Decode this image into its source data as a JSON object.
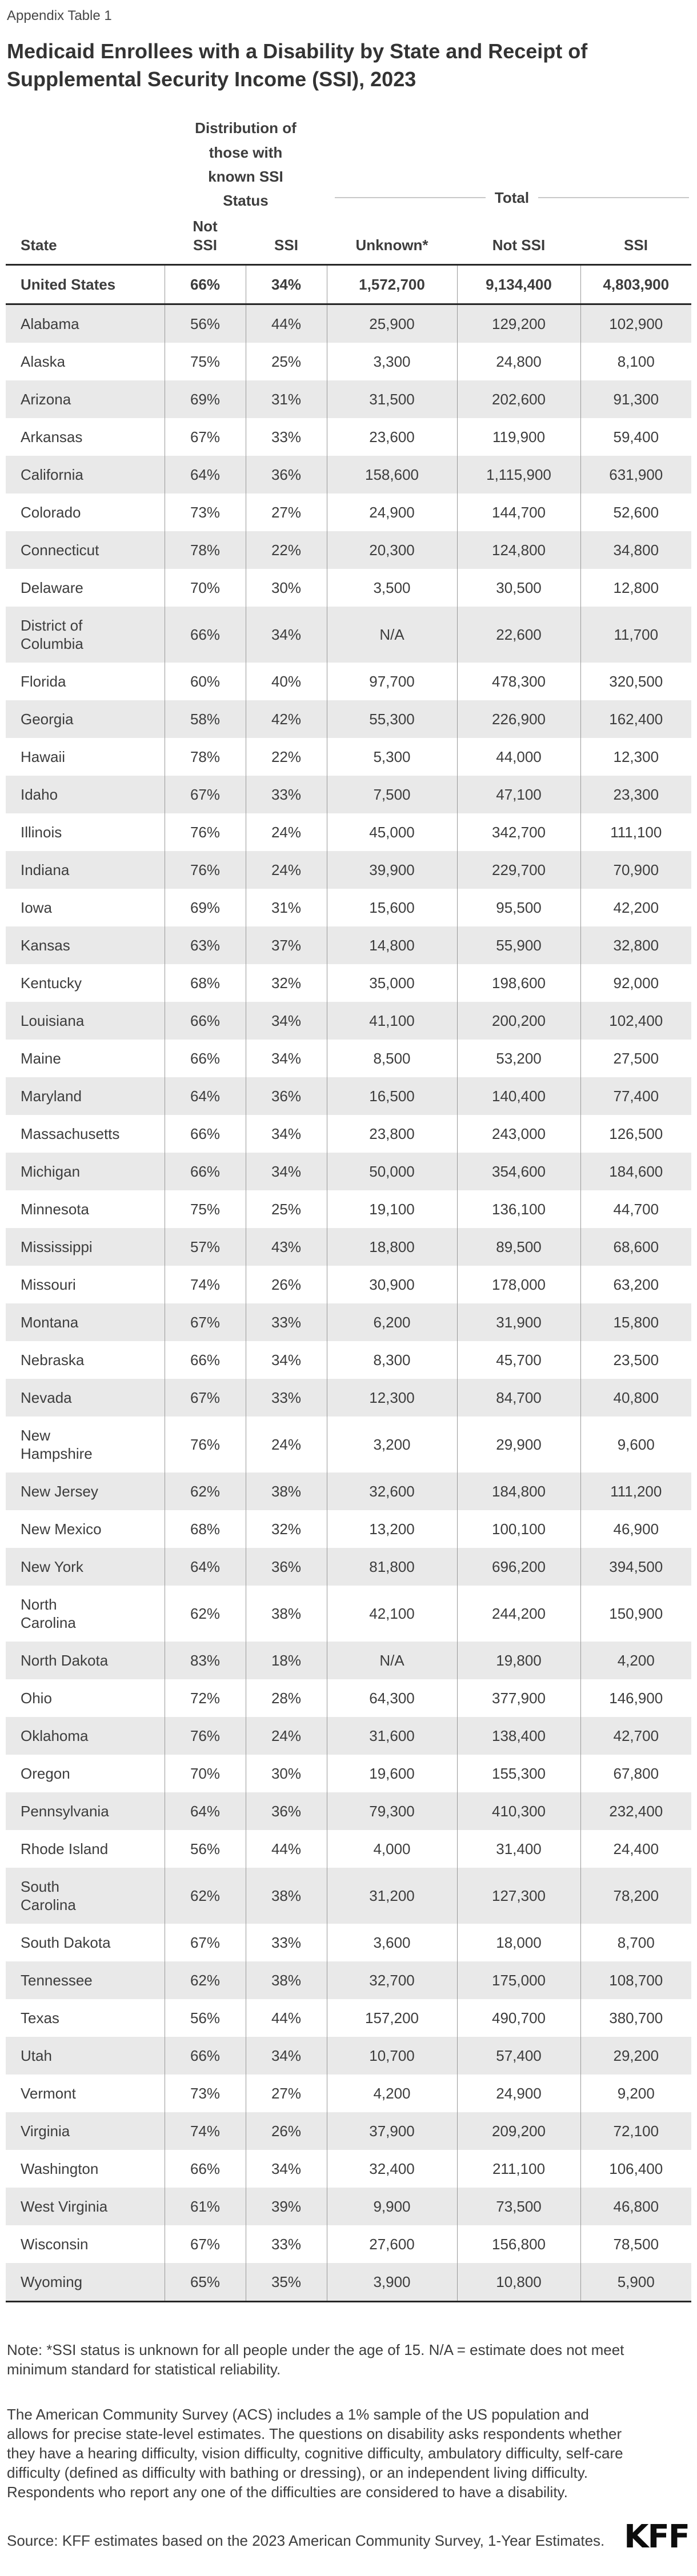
{
  "header": {
    "appendix_label": "Appendix Table 1",
    "title": "Medicaid Enrollees with a Disability by State and Receipt of Supplemental Security Income (SSI), 2023"
  },
  "chart_data": {
    "type": "table",
    "title": "Medicaid Enrollees with a Disability by State and Receipt of Supplemental Security Income (SSI), 2023",
    "column_groups": [
      {
        "label": "",
        "span": 1
      },
      {
        "label": "Distribution of those with known SSI Status",
        "span": 2
      },
      {
        "label": "Total",
        "span": 3
      }
    ],
    "columns": [
      "State",
      "Not SSI",
      "SSI",
      "Unknown*",
      "Not SSI",
      "SSI"
    ],
    "rows": [
      [
        "United States",
        "66%",
        "34%",
        "1,572,700",
        "9,134,400",
        "4,803,900"
      ],
      [
        "Alabama",
        "56%",
        "44%",
        "25,900",
        "129,200",
        "102,900"
      ],
      [
        "Alaska",
        "75%",
        "25%",
        "3,300",
        "24,800",
        "8,100"
      ],
      [
        "Arizona",
        "69%",
        "31%",
        "31,500",
        "202,600",
        "91,300"
      ],
      [
        "Arkansas",
        "67%",
        "33%",
        "23,600",
        "119,900",
        "59,400"
      ],
      [
        "California",
        "64%",
        "36%",
        "158,600",
        "1,115,900",
        "631,900"
      ],
      [
        "Colorado",
        "73%",
        "27%",
        "24,900",
        "144,700",
        "52,600"
      ],
      [
        "Connecticut",
        "78%",
        "22%",
        "20,300",
        "124,800",
        "34,800"
      ],
      [
        "Delaware",
        "70%",
        "30%",
        "3,500",
        "30,500",
        "12,800"
      ],
      [
        "District of\nColumbia",
        "66%",
        "34%",
        "N/A",
        "22,600",
        "11,700"
      ],
      [
        "Florida",
        "60%",
        "40%",
        "97,700",
        "478,300",
        "320,500"
      ],
      [
        "Georgia",
        "58%",
        "42%",
        "55,300",
        "226,900",
        "162,400"
      ],
      [
        "Hawaii",
        "78%",
        "22%",
        "5,300",
        "44,000",
        "12,300"
      ],
      [
        "Idaho",
        "67%",
        "33%",
        "7,500",
        "47,100",
        "23,300"
      ],
      [
        "Illinois",
        "76%",
        "24%",
        "45,000",
        "342,700",
        "111,100"
      ],
      [
        "Indiana",
        "76%",
        "24%",
        "39,900",
        "229,700",
        "70,900"
      ],
      [
        "Iowa",
        "69%",
        "31%",
        "15,600",
        "95,500",
        "42,200"
      ],
      [
        "Kansas",
        "63%",
        "37%",
        "14,800",
        "55,900",
        "32,800"
      ],
      [
        "Kentucky",
        "68%",
        "32%",
        "35,000",
        "198,600",
        "92,000"
      ],
      [
        "Louisiana",
        "66%",
        "34%",
        "41,100",
        "200,200",
        "102,400"
      ],
      [
        "Maine",
        "66%",
        "34%",
        "8,500",
        "53,200",
        "27,500"
      ],
      [
        "Maryland",
        "64%",
        "36%",
        "16,500",
        "140,400",
        "77,400"
      ],
      [
        "Massachusetts",
        "66%",
        "34%",
        "23,800",
        "243,000",
        "126,500"
      ],
      [
        "Michigan",
        "66%",
        "34%",
        "50,000",
        "354,600",
        "184,600"
      ],
      [
        "Minnesota",
        "75%",
        "25%",
        "19,100",
        "136,100",
        "44,700"
      ],
      [
        "Mississippi",
        "57%",
        "43%",
        "18,800",
        "89,500",
        "68,600"
      ],
      [
        "Missouri",
        "74%",
        "26%",
        "30,900",
        "178,000",
        "63,200"
      ],
      [
        "Montana",
        "67%",
        "33%",
        "6,200",
        "31,900",
        "15,800"
      ],
      [
        "Nebraska",
        "66%",
        "34%",
        "8,300",
        "45,700",
        "23,500"
      ],
      [
        "Nevada",
        "67%",
        "33%",
        "12,300",
        "84,700",
        "40,800"
      ],
      [
        "New\nHampshire",
        "76%",
        "24%",
        "3,200",
        "29,900",
        "9,600"
      ],
      [
        "New Jersey",
        "62%",
        "38%",
        "32,600",
        "184,800",
        "111,200"
      ],
      [
        "New Mexico",
        "68%",
        "32%",
        "13,200",
        "100,100",
        "46,900"
      ],
      [
        "New York",
        "64%",
        "36%",
        "81,800",
        "696,200",
        "394,500"
      ],
      [
        "North\nCarolina",
        "62%",
        "38%",
        "42,100",
        "244,200",
        "150,900"
      ],
      [
        "North Dakota",
        "83%",
        "18%",
        "N/A",
        "19,800",
        "4,200"
      ],
      [
        "Ohio",
        "72%",
        "28%",
        "64,300",
        "377,900",
        "146,900"
      ],
      [
        "Oklahoma",
        "76%",
        "24%",
        "31,600",
        "138,400",
        "42,700"
      ],
      [
        "Oregon",
        "70%",
        "30%",
        "19,600",
        "155,300",
        "67,800"
      ],
      [
        "Pennsylvania",
        "64%",
        "36%",
        "79,300",
        "410,300",
        "232,400"
      ],
      [
        "Rhode Island",
        "56%",
        "44%",
        "4,000",
        "31,400",
        "24,400"
      ],
      [
        "South\nCarolina",
        "62%",
        "38%",
        "31,200",
        "127,300",
        "78,200"
      ],
      [
        "South Dakota",
        "67%",
        "33%",
        "3,600",
        "18,000",
        "8,700"
      ],
      [
        "Tennessee",
        "62%",
        "38%",
        "32,700",
        "175,000",
        "108,700"
      ],
      [
        "Texas",
        "56%",
        "44%",
        "157,200",
        "490,700",
        "380,700"
      ],
      [
        "Utah",
        "66%",
        "34%",
        "10,700",
        "57,400",
        "29,200"
      ],
      [
        "Vermont",
        "73%",
        "27%",
        "4,200",
        "24,900",
        "9,200"
      ],
      [
        "Virginia",
        "74%",
        "26%",
        "37,900",
        "209,200",
        "72,100"
      ],
      [
        "Washington",
        "66%",
        "34%",
        "32,400",
        "211,100",
        "106,400"
      ],
      [
        "West Virginia",
        "61%",
        "39%",
        "9,900",
        "73,500",
        "46,800"
      ],
      [
        "Wisconsin",
        "67%",
        "33%",
        "27,600",
        "156,800",
        "78,500"
      ],
      [
        "Wyoming",
        "65%",
        "35%",
        "3,900",
        "10,800",
        "5,900"
      ]
    ]
  },
  "footer": {
    "note": "Note: *SSI status is unknown for all people under the age of 15. N/A = estimate does not meet minimum standard for statistical reliability.",
    "methodology": "The American Community Survey (ACS) includes a 1% sample of the US population and allows for precise state-level estimates. The questions on disability asks respondents whether they have a hearing difficulty, vision difficulty, cognitive difficulty, ambulatory difficulty, self-care difficulty (defined as difficulty with bathing or dressing), or an independent living difficulty. Respondents who report any one of the difficulties are considered to have a disability.",
    "source": "Source: KFF estimates based on the 2023 American Community Survey, 1-Year Estimates.",
    "logo_text": "KFF"
  },
  "colors": {
    "row_shade": "#e9e9e9",
    "border_dark": "#262626",
    "border_light": "#999999",
    "spanner_line": "#c8c8c8",
    "body_text": "#3d3d3d",
    "logo": "#0d0d0d"
  }
}
